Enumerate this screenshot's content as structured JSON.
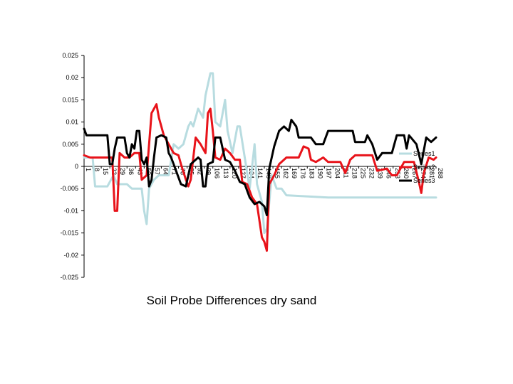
{
  "chart_data": {
    "type": "line",
    "title": "Soil Probe Differences dry sand",
    "xlabel": "",
    "ylabel": "",
    "ylim": [
      -0.025,
      0.025
    ],
    "yticks": [
      "0.025",
      "0.02",
      "0.015",
      "0.01",
      "0.005",
      "0",
      "-0.005",
      "-0.01",
      "-0.015",
      "-0.02",
      "-0.025"
    ],
    "x_count": 288,
    "x_tick_labels": [
      "1",
      "8",
      "15",
      "22",
      "29",
      "36",
      "43",
      "50",
      "57",
      "64",
      "71",
      "78",
      "85",
      "92",
      "99",
      "106",
      "113",
      "120",
      "127",
      "134",
      "141",
      "148",
      "155",
      "162",
      "169",
      "176",
      "183",
      "190",
      "197",
      "204",
      "211",
      "218",
      "225",
      "232",
      "239",
      "246",
      "253",
      "260",
      "267",
      "274",
      "281",
      "288"
    ],
    "grid": false,
    "legend": "right",
    "series": [
      {
        "name": "Series1",
        "color": "#b8dce0",
        "points": [
          [
            1,
            0.002
          ],
          [
            8,
            0.002
          ],
          [
            10,
            -0.0045
          ],
          [
            20,
            -0.0045
          ],
          [
            25,
            -0.002
          ],
          [
            28,
            -0.004
          ],
          [
            36,
            -0.004
          ],
          [
            40,
            -0.005
          ],
          [
            48,
            -0.005
          ],
          [
            50,
            -0.01
          ],
          [
            52,
            -0.013
          ],
          [
            54,
            -0.005
          ],
          [
            58,
            -0.003
          ],
          [
            62,
            -0.002
          ],
          [
            70,
            -0.002
          ],
          [
            74,
            0.005
          ],
          [
            78,
            0.004
          ],
          [
            82,
            0.005
          ],
          [
            86,
            0.009
          ],
          [
            88,
            0.01
          ],
          [
            90,
            0.009
          ],
          [
            94,
            0.013
          ],
          [
            98,
            0.011
          ],
          [
            100,
            0.016
          ],
          [
            104,
            0.021
          ],
          [
            106,
            0.021
          ],
          [
            108,
            0.01
          ],
          [
            112,
            0.009
          ],
          [
            116,
            0.015
          ],
          [
            118,
            0.008
          ],
          [
            122,
            0.003
          ],
          [
            126,
            0.009
          ],
          [
            128,
            0.009
          ],
          [
            132,
            0.002
          ],
          [
            136,
            -0.005
          ],
          [
            140,
            0.005
          ],
          [
            142,
            -0.004
          ],
          [
            146,
            -0.008
          ],
          [
            148,
            -0.015
          ],
          [
            150,
            -0.014
          ],
          [
            154,
            -0.002
          ],
          [
            158,
            -0.005
          ],
          [
            162,
            -0.005
          ],
          [
            166,
            -0.0065
          ],
          [
            200,
            -0.007
          ],
          [
            288,
            -0.007
          ]
        ]
      },
      {
        "name": "Series2",
        "color": "#e8131a",
        "points": [
          [
            1,
            0.0025
          ],
          [
            6,
            0.002
          ],
          [
            24,
            0.002
          ],
          [
            26,
            -0.01
          ],
          [
            28,
            -0.01
          ],
          [
            30,
            0.003
          ],
          [
            34,
            0.002
          ],
          [
            38,
            0.002
          ],
          [
            42,
            0.003
          ],
          [
            46,
            0.003
          ],
          [
            48,
            -0.003
          ],
          [
            52,
            -0.002
          ],
          [
            56,
            0.012
          ],
          [
            60,
            0.014
          ],
          [
            62,
            0.011
          ],
          [
            66,
            0.007
          ],
          [
            70,
            0.005
          ],
          [
            74,
            0.003
          ],
          [
            78,
            0.0025
          ],
          [
            80,
            0.0005
          ],
          [
            84,
            -0.003
          ],
          [
            86,
            -0.0045
          ],
          [
            88,
            -0.003
          ],
          [
            92,
            0.0065
          ],
          [
            96,
            0.005
          ],
          [
            100,
            0.003
          ],
          [
            102,
            0.012
          ],
          [
            104,
            0.013
          ],
          [
            106,
            0.008
          ],
          [
            108,
            0.002
          ],
          [
            112,
            0.0015
          ],
          [
            116,
            0.004
          ],
          [
            120,
            0.003
          ],
          [
            124,
            0.0015
          ],
          [
            128,
            0.0015
          ],
          [
            130,
            -0.0035
          ],
          [
            134,
            -0.004
          ],
          [
            138,
            -0.007
          ],
          [
            142,
            -0.0085
          ],
          [
            146,
            -0.016
          ],
          [
            148,
            -0.017
          ],
          [
            150,
            -0.019
          ],
          [
            152,
            -0.004
          ],
          [
            156,
            -0.002
          ],
          [
            160,
            0.0005
          ],
          [
            166,
            0.002
          ],
          [
            176,
            0.002
          ],
          [
            180,
            0.0045
          ],
          [
            184,
            0.004
          ],
          [
            186,
            0.0015
          ],
          [
            190,
            0.001
          ],
          [
            196,
            0.002
          ],
          [
            200,
            0.001
          ],
          [
            210,
            0.001
          ],
          [
            214,
            -0.0015
          ],
          [
            218,
            0.0015
          ],
          [
            222,
            0.0025
          ],
          [
            236,
            0.0025
          ],
          [
            240,
            -0.001
          ],
          [
            248,
            -0.0005
          ],
          [
            252,
            -0.002
          ],
          [
            256,
            -0.002
          ],
          [
            262,
            0.001
          ],
          [
            270,
            0.001
          ],
          [
            274,
            -0.0035
          ],
          [
            276,
            -0.006
          ],
          [
            278,
            -0.0015
          ],
          [
            282,
            0.002
          ],
          [
            286,
            0.0015
          ],
          [
            288,
            0.002
          ]
        ]
      },
      {
        "name": "Series3",
        "color": "#000000",
        "points": [
          [
            1,
            0.0085
          ],
          [
            3,
            0.007
          ],
          [
            20,
            0.007
          ],
          [
            22,
            0.0005
          ],
          [
            24,
            0.0005
          ],
          [
            26,
            0.004
          ],
          [
            28,
            0.0065
          ],
          [
            34,
            0.0065
          ],
          [
            36,
            0.003
          ],
          [
            38,
            0.002
          ],
          [
            40,
            0.005
          ],
          [
            42,
            0.004
          ],
          [
            44,
            0.008
          ],
          [
            46,
            0.008
          ],
          [
            48,
            0.0015
          ],
          [
            50,
            0.0005
          ],
          [
            52,
            0.002
          ],
          [
            54,
            -0.0045
          ],
          [
            56,
            -0.003
          ],
          [
            58,
            0.002
          ],
          [
            60,
            0.0065
          ],
          [
            64,
            0.007
          ],
          [
            68,
            0.0065
          ],
          [
            70,
            0.003
          ],
          [
            72,
            0.002
          ],
          [
            74,
            0.0005
          ],
          [
            76,
            -0.001
          ],
          [
            80,
            -0.004
          ],
          [
            84,
            -0.0045
          ],
          [
            88,
            0.0005
          ],
          [
            90,
            0.001
          ],
          [
            94,
            0.002
          ],
          [
            96,
            0.0015
          ],
          [
            98,
            -0.0045
          ],
          [
            100,
            -0.0045
          ],
          [
            102,
            0.0005
          ],
          [
            106,
            0.001
          ],
          [
            108,
            0.0065
          ],
          [
            112,
            0.0065
          ],
          [
            116,
            0.0015
          ],
          [
            120,
            0.001
          ],
          [
            124,
            -0.001
          ],
          [
            128,
            -0.0035
          ],
          [
            132,
            -0.004
          ],
          [
            136,
            -0.007
          ],
          [
            140,
            -0.0085
          ],
          [
            144,
            -0.008
          ],
          [
            148,
            -0.009
          ],
          [
            150,
            -0.011
          ],
          [
            152,
            -0.0005
          ],
          [
            156,
            0.0045
          ],
          [
            160,
            0.008
          ],
          [
            164,
            0.009
          ],
          [
            168,
            0.008
          ],
          [
            170,
            0.0105
          ],
          [
            174,
            0.009
          ],
          [
            176,
            0.0065
          ],
          [
            186,
            0.0065
          ],
          [
            190,
            0.005
          ],
          [
            196,
            0.005
          ],
          [
            200,
            0.008
          ],
          [
            220,
            0.008
          ],
          [
            222,
            0.0055
          ],
          [
            230,
            0.0055
          ],
          [
            232,
            0.007
          ],
          [
            236,
            0.005
          ],
          [
            240,
            0.0015
          ],
          [
            244,
            0.003
          ],
          [
            252,
            0.003
          ],
          [
            256,
            0.007
          ],
          [
            262,
            0.007
          ],
          [
            264,
            0.004
          ],
          [
            266,
            0.007
          ],
          [
            272,
            0.005
          ],
          [
            276,
            0.0005
          ],
          [
            280,
            0.0065
          ],
          [
            284,
            0.0055
          ],
          [
            288,
            0.0065
          ]
        ]
      }
    ]
  }
}
